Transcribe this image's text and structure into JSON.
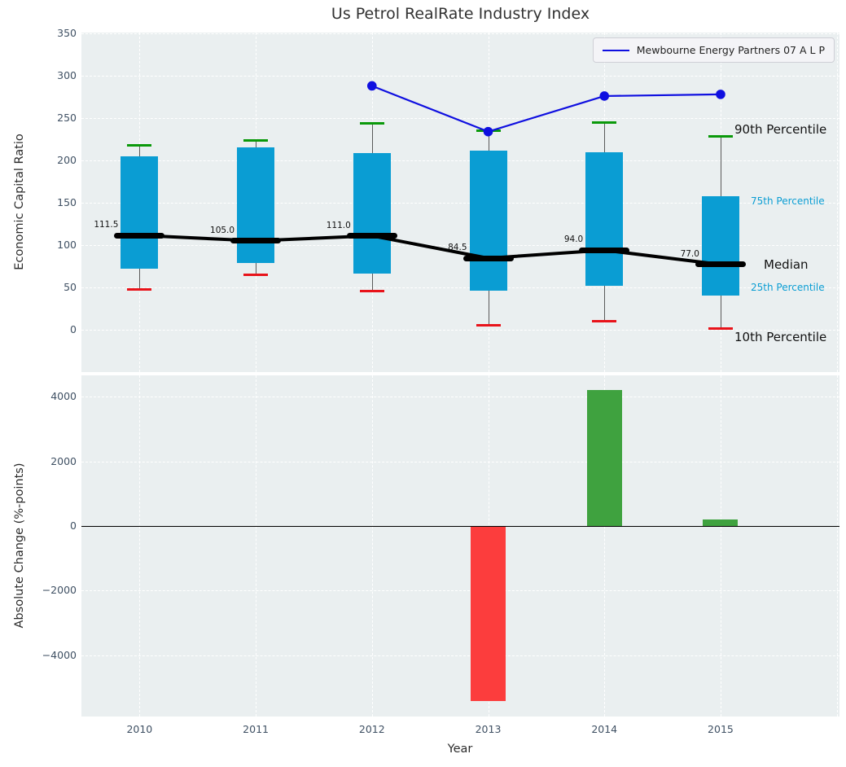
{
  "title": "Us Petrol RealRate Industry Index",
  "legend": {
    "label": "Mewbourne Energy Partners 07 A L P"
  },
  "colors": {
    "box_fill": "#0a9dd3",
    "cap_high": "#0a990a",
    "cap_low": "#e8131a",
    "median": "#000000",
    "line": "#0f0fe0",
    "bar_positive": "#3fa23f",
    "bar_negative": "#fc3d3d",
    "axes_bg": "#eaeff0",
    "grid": "#ffffff",
    "tick": "#3f5063",
    "title": "#323232"
  },
  "chart_data": [
    {
      "type": "box",
      "title": "Us Petrol RealRate Industry Index",
      "ylabel": "Economic Capital Ratio",
      "categories": [
        "2010",
        "2011",
        "2012",
        "2013",
        "2014",
        "2015"
      ],
      "yticks": [
        0,
        50,
        100,
        150,
        200,
        250,
        300,
        350
      ],
      "ylim": [
        -50,
        350
      ],
      "grid": true,
      "legend_position": "upper right",
      "percentiles": {
        "p10": [
          48,
          65,
          46,
          5,
          10,
          1
        ],
        "p25": [
          72,
          79,
          66,
          46,
          52,
          40
        ],
        "median": [
          111.5,
          105.0,
          111.0,
          84.5,
          94.0,
          77.0
        ],
        "p75": [
          205,
          215,
          209,
          212,
          210,
          158
        ],
        "p90": [
          218,
          224,
          244,
          235,
          245,
          228
        ]
      },
      "median_labels": [
        "111.5",
        "105.0",
        "111.0",
        "84.5",
        "94.0",
        "77.0"
      ],
      "series": [
        {
          "name": "Mewbourne Energy Partners 07 A L P",
          "values": [
            null,
            null,
            288,
            234,
            276,
            278
          ]
        }
      ],
      "annotations": [
        {
          "text": "90th Percentile",
          "color": "#111111",
          "size": 15,
          "x": 802,
          "y": 119
        },
        {
          "text": "75th Percentile",
          "color": "#0a9dd3",
          "size": 12,
          "x": 822,
          "y": 207
        },
        {
          "text": "Median",
          "color": "#111111",
          "size": 15,
          "x": 838,
          "y": 285
        },
        {
          "text": "25th Percentile",
          "color": "#0a9dd3",
          "size": 12,
          "x": 822,
          "y": 313
        },
        {
          "text": "10th Percentile",
          "color": "#111111",
          "size": 15,
          "x": 802,
          "y": 374
        }
      ]
    },
    {
      "type": "bar",
      "ylabel": "Absolute Change (%-points)",
      "xlabel": "Year",
      "categories": [
        "2010",
        "2011",
        "2012",
        "2013",
        "2014",
        "2015"
      ],
      "values": [
        null,
        null,
        null,
        -5400,
        4200,
        200
      ],
      "yticks": [
        4000,
        2000,
        0,
        -2000,
        -4000
      ],
      "ylim": [
        -5900,
        4650
      ],
      "grid": true
    }
  ]
}
